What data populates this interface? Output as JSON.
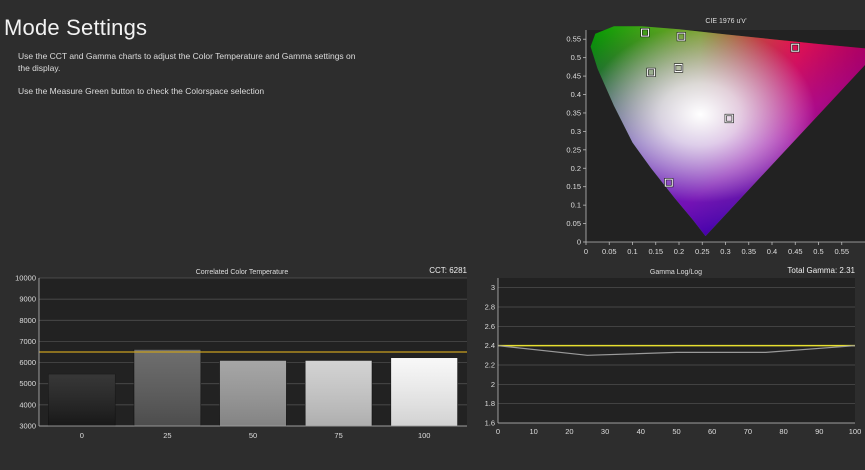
{
  "page": {
    "title": "Mode Settings",
    "instructions": [
      "Use the CCT and Gamma charts to adjust the Color Temperature and Gamma settings on the display.",
      "Use the Measure Green button to check the Colorspace selection"
    ]
  },
  "chart_data": [
    {
      "id": "cie",
      "type": "scatter",
      "title": "CIE 1976 u'v'",
      "xlabel": "",
      "ylabel": "",
      "xlim": [
        0,
        0.6
      ],
      "ylim": [
        0,
        0.575
      ],
      "x_ticks": [
        "0",
        "0.05",
        "0.1",
        "0.15",
        "0.2",
        "0.25",
        "0.3",
        "0.35",
        "0.4",
        "0.45",
        "0.5",
        "0.55"
      ],
      "y_ticks": [
        "0",
        "0.05",
        "0.1",
        "0.15",
        "0.2",
        "0.25",
        "0.3",
        "0.35",
        "0.4",
        "0.45",
        "0.5",
        "0.55"
      ],
      "grid": false,
      "points": [
        {
          "u": 0.127,
          "v": 0.568
        },
        {
          "u": 0.205,
          "v": 0.557
        },
        {
          "u": 0.45,
          "v": 0.527
        },
        {
          "u": 0.14,
          "v": 0.46
        },
        {
          "u": 0.199,
          "v": 0.472
        },
        {
          "u": 0.308,
          "v": 0.335
        },
        {
          "u": 0.178,
          "v": 0.161
        }
      ]
    },
    {
      "id": "cct",
      "type": "bar",
      "title": "Correlated Color Temperature",
      "readout_label": "CCT: 6281",
      "categories": [
        "0",
        "25",
        "50",
        "75",
        "100"
      ],
      "values": [
        5450,
        6620,
        6100,
        6100,
        6230
      ],
      "bar_colors": [
        "#1c1c1c",
        "#5a5a5a",
        "#9a9a9a",
        "#cdcdcd",
        "#f7f7f7"
      ],
      "target": 6500,
      "target_color": "#c8a020",
      "ylim": [
        3000,
        10000
      ],
      "y_ticks": [
        "3000",
        "4000",
        "5000",
        "6000",
        "7000",
        "8000",
        "9000",
        "10000"
      ],
      "grid": true
    },
    {
      "id": "gamma",
      "type": "line",
      "title": "Gamma Log/Log",
      "readout_label": "Total Gamma: 2.31",
      "x": [
        0,
        25,
        50,
        75,
        100
      ],
      "series": [
        {
          "values": [
            2.4,
            2.3,
            2.33,
            2.33,
            2.4
          ],
          "color": "#9a9a9a"
        }
      ],
      "target": 2.4,
      "target_color": "#e8e030",
      "xlim": [
        0,
        100
      ],
      "ylim": [
        1.6,
        3.1
      ],
      "x_ticks": [
        "0",
        "10",
        "20",
        "30",
        "40",
        "50",
        "60",
        "70",
        "80",
        "90",
        "100"
      ],
      "y_ticks": [
        "1.6",
        "1.8",
        "2",
        "2.2",
        "2.4",
        "2.6",
        "2.8",
        "3"
      ],
      "grid": true
    }
  ]
}
